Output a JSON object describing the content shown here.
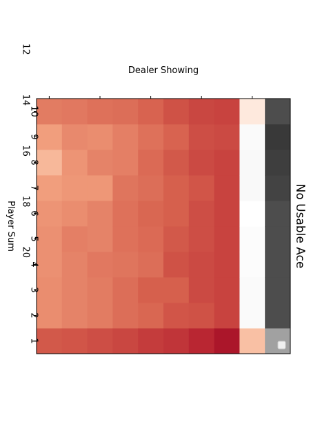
{
  "chart_data": {
    "type": "heatmap",
    "title": "No Usable Ace",
    "xlabel": "Dealer Showing",
    "ylabel": "Player Sum",
    "x_tick_labels": [
      "1",
      "2",
      "3",
      "4",
      "5",
      "6",
      "7",
      "8",
      "9",
      "10"
    ],
    "y_tick_labels": [
      "12",
      "14",
      "16",
      "18",
      "20"
    ],
    "dealer_values": [
      1,
      2,
      3,
      4,
      5,
      6,
      7,
      8,
      9,
      10
    ],
    "player_sums": [
      12,
      13,
      14,
      15,
      16,
      17,
      18,
      19,
      20,
      21
    ],
    "colormap": "RdGy",
    "value_range": [
      -1,
      1
    ],
    "grid": false,
    "values": [
      [
        -0.62,
        -0.47,
        -0.47,
        -0.46,
        -0.46,
        -0.45,
        -0.42,
        -0.33,
        -0.42,
        -0.52
      ],
      [
        -0.63,
        -0.5,
        -0.5,
        -0.5,
        -0.51,
        -0.47,
        -0.44,
        -0.45,
        -0.48,
        -0.53
      ],
      [
        -0.65,
        -0.52,
        -0.52,
        -0.53,
        -0.5,
        -0.5,
        -0.44,
        -0.5,
        -0.47,
        -0.55
      ],
      [
        -0.67,
        -0.56,
        -0.56,
        -0.54,
        -0.55,
        -0.55,
        -0.54,
        -0.51,
        -0.51,
        -0.56
      ],
      [
        -0.7,
        -0.58,
        -0.6,
        -0.56,
        -0.57,
        -0.58,
        -0.56,
        -0.57,
        -0.55,
        -0.59
      ],
      [
        -0.72,
        -0.63,
        -0.6,
        -0.64,
        -0.62,
        -0.6,
        -0.6,
        -0.62,
        -0.59,
        -0.64
      ],
      [
        -0.76,
        -0.64,
        -0.66,
        -0.66,
        -0.65,
        -0.65,
        -0.63,
        -0.66,
        -0.65,
        -0.67
      ],
      [
        -0.82,
        -0.68,
        -0.68,
        -0.68,
        -0.68,
        -0.68,
        -0.68,
        -0.68,
        -0.66,
        -0.68
      ],
      [
        -0.3,
        0.03,
        0.03,
        0.02,
        0.02,
        0.0,
        0.04,
        0.04,
        0.03,
        -0.12
      ],
      [
        0.5,
        0.8,
        0.8,
        0.8,
        0.8,
        0.8,
        0.84,
        0.86,
        0.88,
        0.8
      ]
    ]
  }
}
